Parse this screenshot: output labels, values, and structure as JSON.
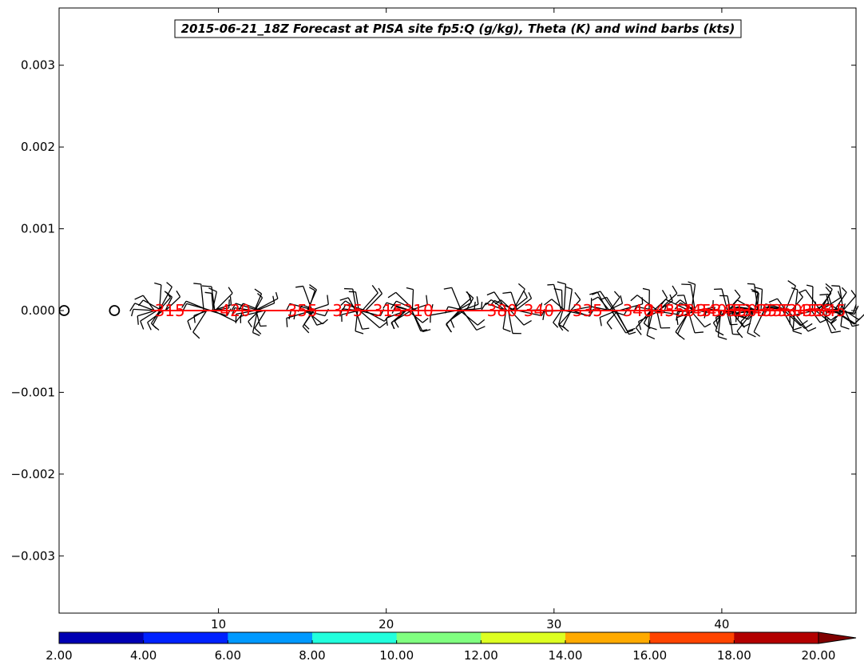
{
  "chart_data": {
    "type": "scatter",
    "title": "2015-06-21_18Z Forecast at PISA site fp5:Q (g/kg), Theta (K) and wind barbs (kts)",
    "xlabel": "",
    "ylabel": "",
    "xlim": [
      0.5,
      48.0
    ],
    "ylim": [
      -0.0037,
      0.0037
    ],
    "x_ticks": [
      10,
      20,
      30,
      40
    ],
    "x_tick_labels": [
      "10",
      "20",
      "30",
      "40"
    ],
    "y_ticks": [
      0.003,
      0.002,
      0.001,
      0.0,
      -0.001,
      -0.002,
      -0.003
    ],
    "y_tick_labels": [
      "0.003",
      "0.002",
      "0.001",
      "0.000",
      "−0.001",
      "−0.002",
      "−0.003"
    ],
    "grid": false,
    "calm_markers": [
      {
        "x": 0.8,
        "y": 0.0
      },
      {
        "x": 3.8,
        "y": 0.0
      }
    ],
    "theta_line": {
      "x_start": 6.0,
      "x_end": 47.0,
      "y": 0.0,
      "color": "#ff0000"
    },
    "theta_labels": [
      {
        "x": 7.1,
        "text": "315"
      },
      {
        "x": 11.0,
        "text": "420"
      },
      {
        "x": 15.0,
        "text": "355"
      },
      {
        "x": 17.7,
        "text": "375"
      },
      {
        "x": 20.1,
        "text": "315"
      },
      {
        "x": 21.9,
        "text": "310"
      },
      {
        "x": 26.9,
        "text": "380"
      },
      {
        "x": 29.1,
        "text": "340"
      },
      {
        "x": 32.0,
        "text": "335"
      },
      {
        "x": 35.0,
        "text": "340"
      },
      {
        "x": 36.3,
        "text": "345"
      },
      {
        "x": 37.5,
        "text": "350"
      },
      {
        "x": 38.5,
        "text": "345"
      },
      {
        "x": 39.4,
        "text": "340"
      },
      {
        "x": 40.3,
        "text": "345"
      },
      {
        "x": 41.2,
        "text": "350"
      },
      {
        "x": 42.1,
        "text": "345"
      },
      {
        "x": 43.0,
        "text": "355"
      },
      {
        "x": 43.9,
        "text": "350"
      },
      {
        "x": 44.8,
        "text": "345"
      },
      {
        "x": 45.7,
        "text": "355"
      },
      {
        "x": 46.5,
        "text": "345"
      }
    ],
    "wind_barb_clusters": [
      {
        "x": 6.5
      },
      {
        "x": 9.5
      },
      {
        "x": 12.5
      },
      {
        "x": 15.5
      },
      {
        "x": 18.5
      },
      {
        "x": 21.5
      },
      {
        "x": 24.5
      },
      {
        "x": 27.5
      },
      {
        "x": 30.8
      },
      {
        "x": 33.5
      },
      {
        "x": 36.0
      },
      {
        "x": 38.3
      },
      {
        "x": 40.3
      },
      {
        "x": 42.2
      },
      {
        "x": 44.0
      },
      {
        "x": 45.7
      },
      {
        "x": 47.0
      }
    ],
    "colorbar": {
      "boundaries": [
        2,
        4,
        6,
        8,
        10,
        12,
        14,
        16,
        18,
        20
      ],
      "labels": [
        "2.00",
        "4.00",
        "6.00",
        "8.00",
        "10.00",
        "12.00",
        "14.00",
        "16.00",
        "18.00",
        "20.00"
      ],
      "colors": [
        "#0000b3",
        "#0022ff",
        "#0099ff",
        "#22ffdd",
        "#80ff80",
        "#ddff22",
        "#ffaa00",
        "#ff4400",
        "#b30000"
      ],
      "extend_color": "#800000",
      "extend": "max"
    }
  }
}
